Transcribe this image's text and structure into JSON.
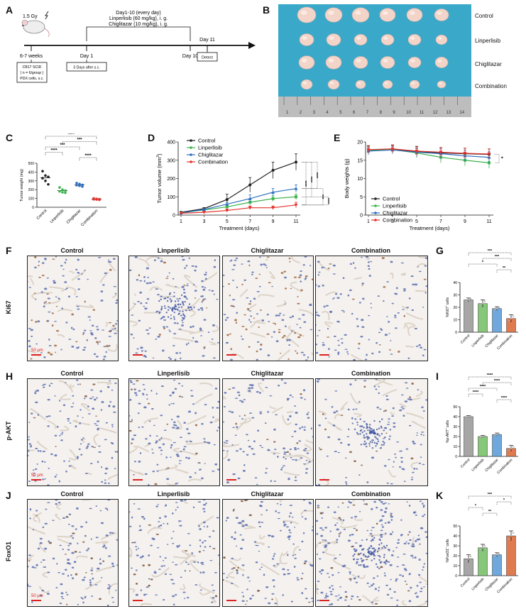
{
  "panels": {
    "A": {
      "letter": "A",
      "dose": "1.5 Gy",
      "treat_window": "Day1-10 (every day)",
      "drug1": "Linperlisib (60 mg/kg), i. g.",
      "drug2": "Chiglitazar (10 mg/kg), i. g.",
      "t0": "6-7 weeks",
      "t1": "Day 1",
      "t2": "Day 10",
      "t3": "Day 11",
      "box1": [
        "CB17 SCID",
        "( n = 6/group )",
        "PDX cells, s.c."
      ],
      "box2": "3 Days after s.c.",
      "box3": "Detect"
    },
    "B": {
      "letter": "B",
      "groups": [
        "Control",
        "Linperlisib",
        "Chiglitazar",
        "Combination"
      ],
      "ruler": [
        "1",
        "2",
        "3",
        "4",
        "5",
        "6",
        "7",
        "8",
        "9",
        "10",
        "11",
        "12",
        "13",
        "14"
      ]
    },
    "C": {
      "letter": "C"
    },
    "D": {
      "letter": "D"
    },
    "E": {
      "letter": "E"
    },
    "F": {
      "letter": "F",
      "row_label": "Ki67"
    },
    "G": {
      "letter": "G"
    },
    "H": {
      "letter": "H",
      "row_label": "p-AKT"
    },
    "I": {
      "letter": "I"
    },
    "J": {
      "letter": "J",
      "row_label": "FoxO1"
    },
    "K": {
      "letter": "K"
    }
  },
  "ihc": {
    "columns": [
      "Control",
      "Linperlisib",
      "Chiglitazar",
      "Combination"
    ],
    "scale": "50 μm"
  },
  "colors": {
    "Control": "#222222",
    "Linperlisib": "#3cb34a",
    "Chiglitazar": "#2f6fc0",
    "Combination": "#e5322d",
    "bar_control": "#a6a6a6",
    "bar_linperlisib": "#86c77a",
    "bar_chiglitazar": "#6fa8dc",
    "bar_combination": "#e07b4f"
  },
  "chart_data": [
    {
      "id": "C",
      "type": "scatter",
      "ylabel": "Tumor weight (mg)",
      "ylim": [
        0,
        500
      ],
      "yticks": [
        0,
        100,
        200,
        300,
        400,
        500
      ],
      "categories": [
        "Control",
        "Linperlisib",
        "Chiglitazar",
        "Combination"
      ],
      "points": [
        [
          410,
          360,
          345,
          330,
          300,
          260
        ],
        [
          225,
          200,
          190,
          180,
          170,
          165
        ],
        [
          275,
          265,
          255,
          250,
          245,
          235
        ],
        [
          100,
          95,
          92,
          90,
          88,
          85
        ]
      ],
      "means": [
        335,
        190,
        255,
        92
      ],
      "sig": [
        {
          "a": 0,
          "b": 3,
          "label": "****"
        },
        {
          "a": 1,
          "b": 3,
          "label": "***"
        },
        {
          "a": 0,
          "b": 2,
          "label": "***"
        },
        {
          "a": 0,
          "b": 1,
          "label": "****"
        },
        {
          "a": 2,
          "b": 3,
          "label": "****"
        }
      ]
    },
    {
      "id": "D",
      "type": "line",
      "xlabel": "Treatment (days)",
      "ylabel": "Tumor volume (mm",
      "ylabel_sup": "3",
      "ylabel_end": ")",
      "x": [
        1,
        3,
        5,
        7,
        9,
        11
      ],
      "ylim": [
        0,
        400
      ],
      "yticks": [
        0,
        100,
        200,
        300,
        400
      ],
      "series": [
        {
          "name": "Control",
          "values": [
            15,
            35,
            85,
            165,
            245,
            290
          ],
          "err": [
            5,
            6,
            30,
            40,
            45,
            45
          ]
        },
        {
          "name": "Linperlisib",
          "values": [
            12,
            28,
            45,
            70,
            90,
            100
          ],
          "err": [
            4,
            5,
            10,
            15,
            15,
            15
          ]
        },
        {
          "name": "Chiglitazar",
          "values": [
            12,
            30,
            60,
            90,
            125,
            145
          ],
          "err": [
            4,
            5,
            10,
            20,
            20,
            20
          ]
        },
        {
          "name": "Combination",
          "values": [
            10,
            15,
            25,
            40,
            40,
            55
          ],
          "err": [
            3,
            5,
            8,
            10,
            10,
            15
          ]
        }
      ],
      "sig_labels": [
        "****",
        "****",
        "****",
        "***",
        "****"
      ]
    },
    {
      "id": "E",
      "type": "line",
      "xlabel": "Treatment (days)",
      "ylabel": "Body weights (g)",
      "x": [
        1,
        3,
        5,
        7,
        9,
        11
      ],
      "ylim": [
        0,
        20
      ],
      "yticks": [
        0,
        5,
        10,
        15,
        20
      ],
      "series": [
        {
          "name": "Control",
          "values": [
            17.8,
            18.0,
            17.3,
            17.0,
            16.8,
            16.6
          ],
          "err": [
            1.2,
            1.2,
            1.5,
            1.5,
            1.5,
            1.5
          ]
        },
        {
          "name": "Linperlisib",
          "values": [
            17.7,
            17.9,
            17.0,
            15.8,
            15.0,
            14.3
          ],
          "err": [
            1.0,
            1.0,
            1.2,
            1.5,
            1.5,
            1.5
          ]
        },
        {
          "name": "Chiglitazar",
          "values": [
            17.5,
            17.8,
            17.2,
            16.8,
            16.2,
            15.8
          ],
          "err": [
            1.0,
            1.0,
            1.2,
            1.3,
            1.5,
            1.5
          ]
        },
        {
          "name": "Combination",
          "values": [
            17.9,
            18.1,
            17.5,
            17.2,
            16.9,
            16.7
          ],
          "err": [
            1.0,
            1.0,
            1.2,
            1.3,
            1.4,
            1.4
          ]
        }
      ],
      "sig_labels": [
        "*"
      ]
    },
    {
      "id": "G",
      "type": "bar",
      "ylabel": "%Ki67",
      "ylabel_sup": "+",
      "ylabel_end": " cells",
      "categories": [
        "Control",
        "Linperlisib",
        "Chiglitazar",
        "Combination"
      ],
      "values": [
        26,
        23,
        19,
        11
      ],
      "err": [
        1.5,
        3,
        1.5,
        3
      ],
      "ylim": [
        0,
        40
      ],
      "yticks": [
        0,
        10,
        20,
        30,
        40
      ],
      "sig": [
        {
          "a": 0,
          "b": 3,
          "label": "***"
        },
        {
          "a": 1,
          "b": 3,
          "label": "***"
        },
        {
          "a": 0,
          "b": 2,
          "label": "*"
        },
        {
          "a": 2,
          "b": 3,
          "label": "**"
        }
      ]
    },
    {
      "id": "I",
      "type": "bar",
      "ylabel": "%p-AKT",
      "ylabel_sup": "+",
      "ylabel_end": " cells",
      "categories": [
        "Control",
        "Linperlisib",
        "Chiglitazar",
        "Combination"
      ],
      "values": [
        40,
        20,
        22,
        8
      ],
      "err": [
        1,
        1.2,
        1.5,
        3
      ],
      "ylim": [
        0,
        50
      ],
      "yticks": [
        0,
        10,
        20,
        30,
        40,
        50
      ],
      "sig": [
        {
          "a": 0,
          "b": 3,
          "label": "****"
        },
        {
          "a": 1,
          "b": 3,
          "label": "****"
        },
        {
          "a": 0,
          "b": 2,
          "label": "****"
        },
        {
          "a": 0,
          "b": 1,
          "label": "****"
        },
        {
          "a": 2,
          "b": 3,
          "label": "****"
        }
      ]
    },
    {
      "id": "K",
      "type": "bar",
      "ylabel": "%FoxO1",
      "ylabel_sup": "+",
      "ylabel_end": " cells",
      "categories": [
        "Control",
        "Linperlisib",
        "Chiglitazar",
        "Combination"
      ],
      "values": [
        17,
        28,
        21,
        40
      ],
      "err": [
        4,
        3.5,
        2,
        5
      ],
      "ylim": [
        0,
        50
      ],
      "yticks": [
        0,
        10,
        20,
        30,
        40,
        50
      ],
      "sig": [
        {
          "a": 0,
          "b": 3,
          "label": "***"
        },
        {
          "a": 2,
          "b": 3,
          "label": "*"
        },
        {
          "a": 0,
          "b": 1,
          "label": "*"
        },
        {
          "a": 1,
          "b": 2,
          "label": "**"
        }
      ]
    }
  ]
}
